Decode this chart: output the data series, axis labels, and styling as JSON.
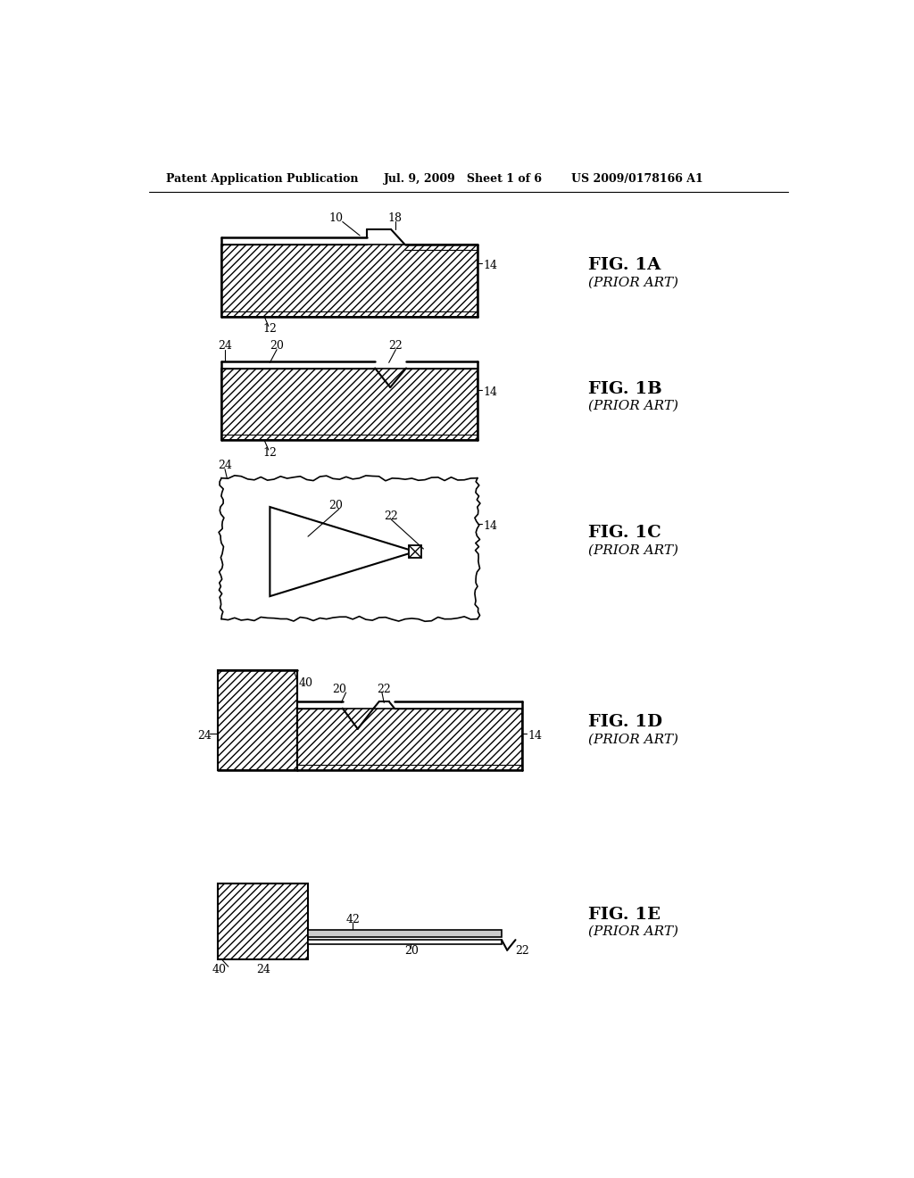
{
  "title_left": "Patent Application Publication",
  "title_center": "Jul. 9, 2009   Sheet 1 of 6",
  "title_right": "US 2009/0178166 A1",
  "bg": "#ffffff"
}
